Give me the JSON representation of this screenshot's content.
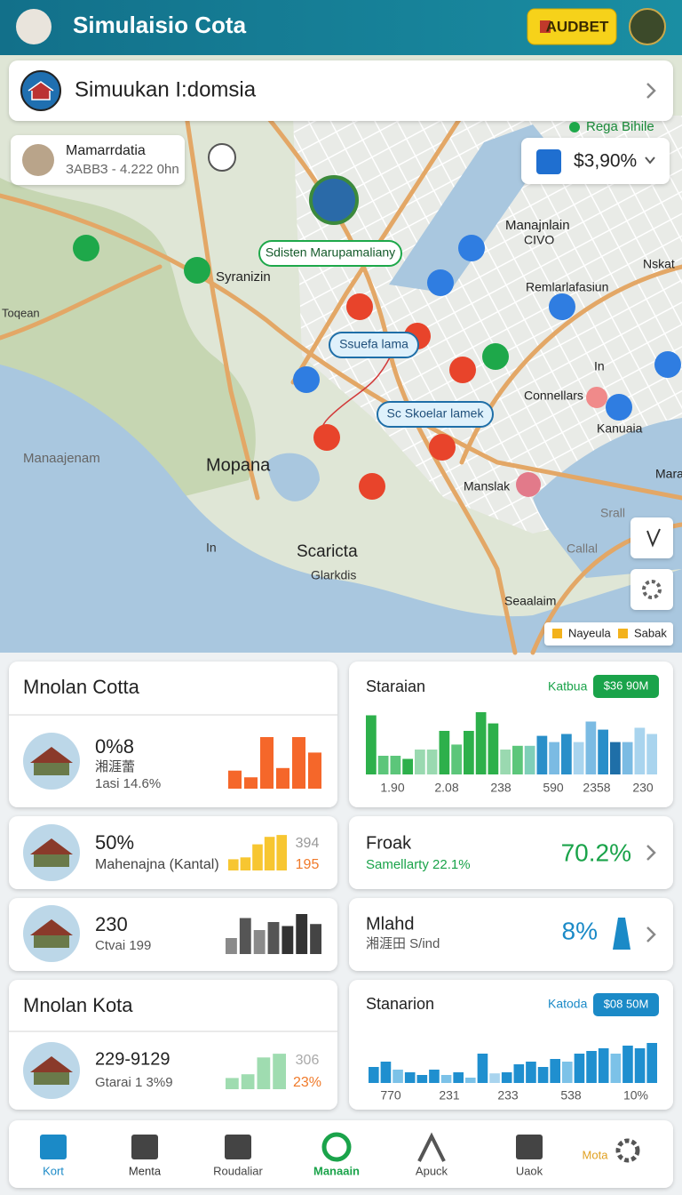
{
  "header": {
    "title": "Simulaisio Cota",
    "badge": "AUDBET"
  },
  "search": {
    "text": "Simuukan I:domsia"
  },
  "map": {
    "profile": {
      "name": "Mamarrdatia",
      "detail": "ЗАВВЗ - 4.222 0hn"
    },
    "price_label": "Rega Bihile",
    "price": "$3,90%",
    "pills": [
      "Sdisten Marupamaliany",
      "Ssuefa lama",
      "Sc Skoelar lamek"
    ],
    "labels": [
      "Syranizin",
      "Toqean",
      "Manaajenam",
      "Mopana",
      "In",
      "Scaricta",
      "Glarkdis",
      "Manajnlain",
      "CIVO",
      "Nskat",
      "Remlarlafasiun",
      "In",
      "Connellars",
      "Kanuaia",
      "Manslak",
      "Mara",
      "Srall",
      "Callal",
      "Seaalaim"
    ],
    "legend": [
      "Nayeula",
      "Sabak"
    ]
  },
  "cards": [
    {
      "title": "Mnolan Cotta",
      "value": "0%8",
      "line1": "湘涯蕾",
      "line2": "1asi 14.6%",
      "bars": {
        "color": "#f5672a",
        "values": [
          35,
          22,
          100,
          40,
          100,
          70
        ]
      }
    },
    {
      "title": "Staraian",
      "tag": "Katbua",
      "badge": "$36 90M",
      "bars": {
        "values": [
          95,
          30,
          30,
          25,
          40,
          40,
          70,
          48,
          70,
          100,
          82,
          40,
          46,
          46,
          62,
          52,
          65,
          52,
          85,
          72,
          52,
          52,
          75,
          65
        ],
        "colors": [
          "#2db04b",
          "#5cc67a",
          "#5cc67a",
          "#2db04b",
          "#9ad9b0",
          "#9ad9b0",
          "#2db04b",
          "#5cc67a",
          "#2db04b",
          "#2db04b",
          "#2db04b",
          "#9ad9b0",
          "#5cc67a",
          "#7fcfb8",
          "#2a8fc9",
          "#7bbbe3",
          "#2a8fc9",
          "#a9d4ee",
          "#7bbbe3",
          "#2a8fc9",
          "#1f6fa8",
          "#7bbbe3",
          "#a9d4ee",
          "#a9d4ee"
        ]
      },
      "axis": [
        "1.90",
        "2.08",
        "238",
        "590",
        "2358",
        "230"
      ]
    },
    {
      "value": "50%",
      "line1": "Mahenajna (Kantal)",
      "bars": {
        "color": "#f7c631",
        "values": [
          30,
          35,
          70,
          90,
          95
        ]
      },
      "side": [
        "394",
        "195"
      ]
    },
    {
      "title": "Froak",
      "line1": "Samellarty 22.1%",
      "value": "70.2%"
    },
    {
      "value": "230",
      "line1": "Ctvai 199",
      "bars": {
        "values": [
          40,
          90,
          60,
          80,
          70,
          100,
          75
        ],
        "colors": [
          "#8a8a8a",
          "#555555",
          "#8a8a8a",
          "#555555",
          "#333333",
          "#333333",
          "#444444"
        ]
      }
    },
    {
      "title": "Mlahd",
      "line1": "湘涯田 S/ind",
      "value": "8%"
    },
    {
      "title": "Mnolan Kota",
      "value": "229-9129",
      "line1": "Gtarai 1 3%9",
      "bars": {
        "color": "#9fdcb0",
        "values": [
          30,
          40,
          85,
          95
        ]
      },
      "side": [
        "306",
        "23%"
      ]
    },
    {
      "title": "Stanarion",
      "tag": "Katoda",
      "badge": "$08 50M",
      "bars": {
        "values": [
          30,
          40,
          25,
          20,
          15,
          25,
          15,
          20,
          10,
          55,
          18,
          20,
          35,
          40,
          30,
          45,
          40,
          55,
          60,
          65,
          55,
          70,
          65,
          75
        ],
        "colors": [
          "#1f8fcf",
          "#1f8fcf",
          "#7cc2e8",
          "#1f8fcf",
          "#1f8fcf",
          "#1f8fcf",
          "#7cc2e8",
          "#1f8fcf",
          "#7cc2e8",
          "#1f8fcf",
          "#a9d4ee",
          "#1f8fcf",
          "#1f8fcf",
          "#1f8fcf",
          "#1f8fcf",
          "#1f8fcf",
          "#7cc2e8",
          "#1f8fcf",
          "#1f8fcf",
          "#1f8fcf",
          "#7cc2e8",
          "#1f8fcf",
          "#1f8fcf",
          "#1f8fcf"
        ]
      },
      "axis": [
        "770",
        "231",
        "233",
        "538",
        "10%"
      ]
    }
  ],
  "nav": [
    "Kort",
    "Menta",
    "Roudaliar",
    "Manaain",
    "Apuck",
    "Uaok",
    "Mota"
  ]
}
